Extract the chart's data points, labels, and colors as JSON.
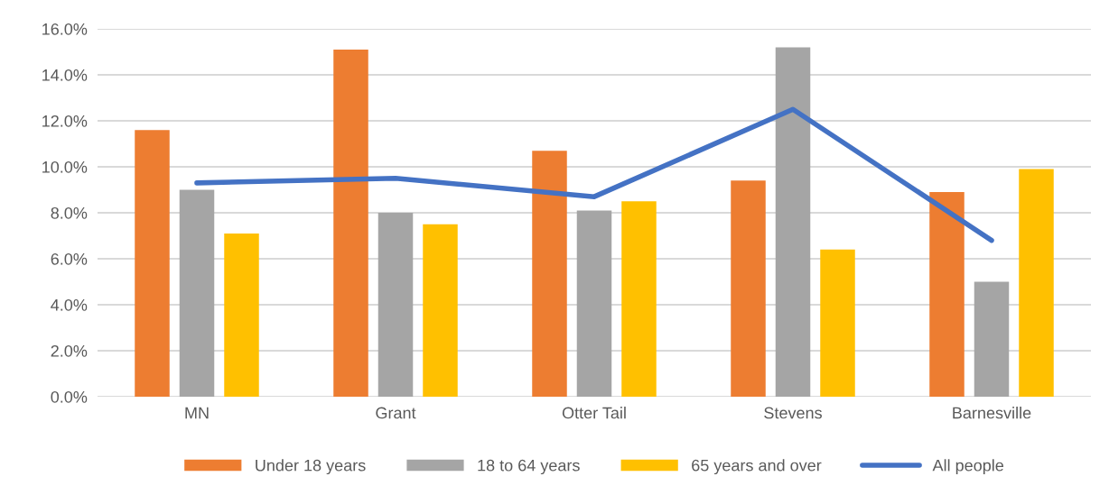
{
  "chart_data": {
    "type": "bar",
    "categories": [
      "MN",
      "Grant",
      "Otter Tail",
      "Stevens",
      "Barnesville"
    ],
    "series": [
      {
        "name": "Under 18 years",
        "color": "#ed7d31",
        "values": [
          11.6,
          15.1,
          10.7,
          9.4,
          8.9
        ]
      },
      {
        "name": "18 to 64 years",
        "color": "#a5a5a5",
        "values": [
          9.0,
          8.0,
          8.1,
          15.2,
          5.0
        ]
      },
      {
        "name": "65 years and over",
        "color": "#ffc000",
        "values": [
          7.1,
          7.5,
          8.5,
          6.4,
          9.9
        ]
      },
      {
        "name": "All people",
        "color": "#4472c4",
        "type": "line",
        "values": [
          9.3,
          9.5,
          8.7,
          12.5,
          6.8
        ]
      }
    ],
    "ylim": [
      0,
      16
    ],
    "yticks": [
      {
        "value": 0,
        "label": "0.0%"
      },
      {
        "value": 2,
        "label": "2.0%"
      },
      {
        "value": 4,
        "label": "4.0%"
      },
      {
        "value": 6,
        "label": "6.0%"
      },
      {
        "value": 8,
        "label": "8.0%"
      },
      {
        "value": 10,
        "label": "10.0%"
      },
      {
        "value": 12,
        "label": "12.0%"
      },
      {
        "value": 14,
        "label": "14.0%"
      },
      {
        "value": 16,
        "label": "16.0%"
      }
    ],
    "grid": "y",
    "legend": "bottom",
    "marker": "none",
    "line_style": "solid"
  }
}
